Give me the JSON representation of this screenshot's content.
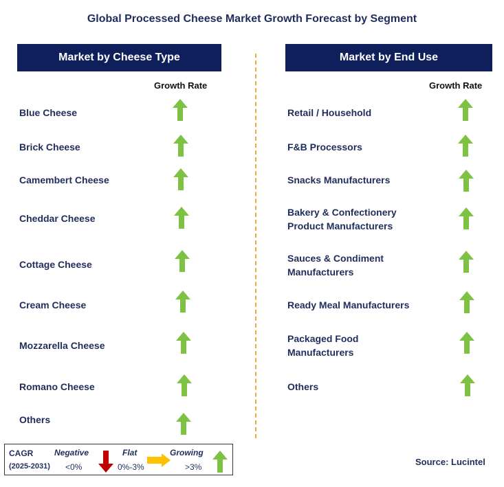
{
  "title": "Global Processed Cheese Market Growth Forecast by Segment",
  "left_panel": {
    "header": "Market by Cheese Type",
    "growth_rate_label": "Growth Rate",
    "items": [
      {
        "label": "Blue Cheese",
        "trend": "growing"
      },
      {
        "label": "Brick Cheese",
        "trend": "growing"
      },
      {
        "label": "Camembert Cheese",
        "trend": "growing"
      },
      {
        "label": "Cheddar Cheese",
        "trend": "growing"
      },
      {
        "label": "Cottage Cheese",
        "trend": "growing"
      },
      {
        "label": "Cream Cheese",
        "trend": "growing"
      },
      {
        "label": "Mozzarella Cheese",
        "trend": "growing"
      },
      {
        "label": "Romano Cheese",
        "trend": "growing"
      },
      {
        "label": "Others",
        "trend": "growing"
      }
    ]
  },
  "right_panel": {
    "header": "Market by End Use",
    "growth_rate_label": "Growth Rate",
    "items": [
      {
        "label": "Retail / Household",
        "trend": "growing"
      },
      {
        "label": "F&B Processors",
        "trend": "growing"
      },
      {
        "label": "Snacks Manufacturers",
        "trend": "growing"
      },
      {
        "label_line1": "Bakery & Confectionery",
        "label_line2": "Product Manufacturers",
        "trend": "growing"
      },
      {
        "label_line1": "Sauces & Condiment",
        "label_line2": "Manufacturers",
        "trend": "growing"
      },
      {
        "label": "Ready Meal Manufacturers",
        "trend": "growing"
      },
      {
        "label_line1": "Packaged Food",
        "label_line2": "Manufacturers",
        "trend": "growing"
      },
      {
        "label": "Others",
        "trend": "growing"
      }
    ]
  },
  "legend": {
    "cagr_label": "CAGR",
    "period": "(2025-2031)",
    "negative_label": "Negative",
    "negative_range": "<0%",
    "flat_label": "Flat",
    "flat_range": "0%-3%",
    "growing_label": "Growing",
    "growing_range": ">3%"
  },
  "source": "Source: Lucintel",
  "colors": {
    "header_bg": "#0f1f5c",
    "text": "#1f2d5c",
    "growing_arrow": "#7dc242",
    "negative_arrow": "#c00000",
    "flat_arrow": "#ffc000",
    "divider": "#f2a93b"
  },
  "icons": {
    "growing": "up-arrow-icon",
    "negative": "down-arrow-icon",
    "flat": "right-arrow-icon"
  }
}
